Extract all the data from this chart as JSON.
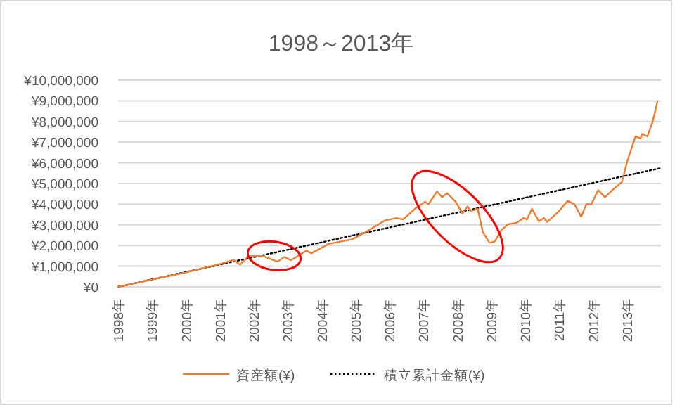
{
  "chart_data": {
    "type": "line",
    "title": "1998～2013年",
    "legend": "bottom",
    "grid": "y",
    "xlim": [
      1998,
      2014
    ],
    "xticks": [
      {
        "value": 1998,
        "label": "1998年"
      },
      {
        "value": 1999,
        "label": "1999年"
      },
      {
        "value": 2000,
        "label": "2000年"
      },
      {
        "value": 2001,
        "label": "2001年"
      },
      {
        "value": 2002,
        "label": "2002年"
      },
      {
        "value": 2003,
        "label": "2003年"
      },
      {
        "value": 2004,
        "label": "2004年"
      },
      {
        "value": 2005,
        "label": "2005年"
      },
      {
        "value": 2006,
        "label": "2006年"
      },
      {
        "value": 2007,
        "label": "2007年"
      },
      {
        "value": 2008,
        "label": "2008年"
      },
      {
        "value": 2009,
        "label": "2009年"
      },
      {
        "value": 2010,
        "label": "2010年"
      },
      {
        "value": 2011,
        "label": "2011年"
      },
      {
        "value": 2012,
        "label": "2012年"
      },
      {
        "value": 2013,
        "label": "2013年"
      }
    ],
    "ylim": [
      0,
      10000000
    ],
    "yticks": [
      {
        "value": 0,
        "label": "¥0"
      },
      {
        "value": 1000000,
        "label": "¥1,000,000"
      },
      {
        "value": 2000000,
        "label": "¥2,000,000"
      },
      {
        "value": 3000000,
        "label": "¥3,000,000"
      },
      {
        "value": 4000000,
        "label": "¥4,000,000"
      },
      {
        "value": 5000000,
        "label": "¥5,000,000"
      },
      {
        "value": 6000000,
        "label": "¥6,000,000"
      },
      {
        "value": 7000000,
        "label": "¥7,000,000"
      },
      {
        "value": 8000000,
        "label": "¥8,000,000"
      },
      {
        "value": 9000000,
        "label": "¥9,000,000"
      },
      {
        "value": 10000000,
        "label": "¥10,000,000"
      }
    ],
    "series": [
      {
        "name": "資産額(¥)",
        "color": "#ed7d31",
        "line_style": "solid",
        "x": [
          1998,
          1999,
          2000,
          2001,
          2001.4,
          2001.6,
          2001.85,
          2002.25,
          2002.7,
          2002.9,
          2003.1,
          2003.3,
          2003.55,
          2003.7,
          2004.2,
          2004.9,
          2005.3,
          2005.85,
          2006.2,
          2006.4,
          2006.75,
          2007.05,
          2007.15,
          2007.4,
          2007.55,
          2007.7,
          2007.95,
          2008.15,
          2008.3,
          2008.4,
          2008.6,
          2008.75,
          2008.95,
          2009.1,
          2009.3,
          2009.5,
          2009.75,
          2009.95,
          2010.05,
          2010.2,
          2010.4,
          2010.55,
          2010.65,
          2011,
          2011.25,
          2011.45,
          2011.65,
          2011.8,
          2011.95,
          2012.15,
          2012.35,
          2012.65,
          2012.85,
          2013,
          2013.25,
          2013.4,
          2013.45,
          2013.6,
          2013.75,
          2013.9
        ],
        "values": [
          0,
          350000,
          700000,
          1100000,
          1300000,
          1070000,
          1500000,
          1500000,
          1220000,
          1450000,
          1290000,
          1500000,
          1750000,
          1630000,
          2080000,
          2300000,
          2650000,
          3200000,
          3330000,
          3260000,
          3780000,
          4120000,
          4000000,
          4620000,
          4340000,
          4530000,
          4120000,
          3550000,
          3890000,
          3670000,
          3780000,
          2650000,
          2130000,
          2190000,
          2760000,
          3030000,
          3100000,
          3330000,
          3260000,
          3780000,
          3170000,
          3330000,
          3140000,
          3670000,
          4160000,
          4000000,
          3390000,
          4000000,
          4000000,
          4680000,
          4340000,
          4800000,
          5070000,
          6040000,
          7280000,
          7180000,
          7400000,
          7280000,
          7960000,
          8980000
        ]
      },
      {
        "name": "積立累計金額(¥)",
        "color": "#000000",
        "line_style": "dotted",
        "x": [
          1998,
          2014
        ],
        "values": [
          0,
          5750000
        ]
      }
    ]
  }
}
